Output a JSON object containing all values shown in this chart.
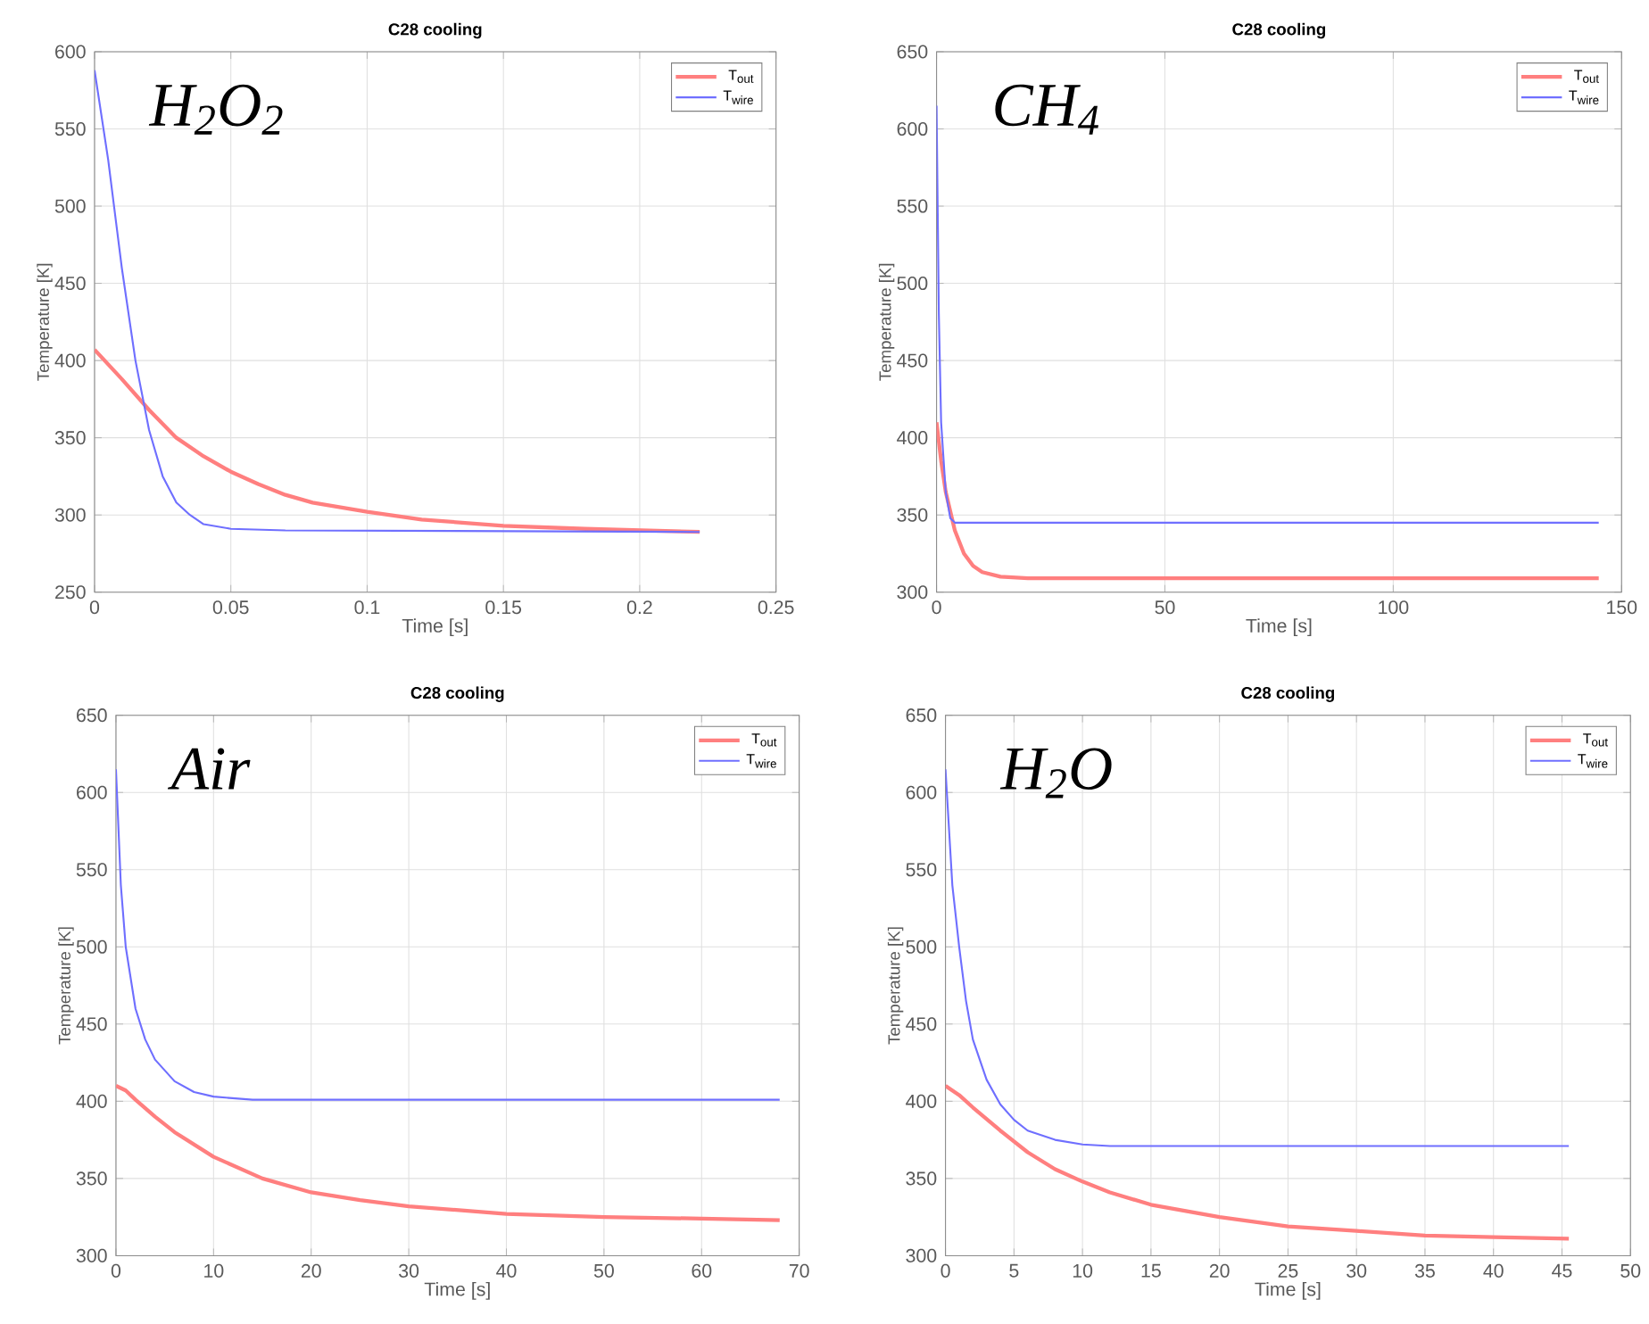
{
  "chart_data": [
    {
      "type": "line",
      "title": "C28 cooling",
      "xlabel": "Time [s]",
      "ylabel": "Temperature [K]",
      "annotations": [
        "H$_{2}$O$_{2}$"
      ],
      "xlim": [
        0,
        0.25
      ],
      "ylim": [
        250,
        600
      ],
      "xticks": [
        0,
        0.05,
        0.1,
        0.15,
        0.2,
        0.25
      ],
      "yticks": [
        250,
        300,
        350,
        400,
        450,
        500,
        550,
        600
      ],
      "grid": true,
      "legend": "top right",
      "series": [
        {
          "name": "T$_{out}$",
          "color": "#ff7f7f",
          "x": [
            0,
            0.01,
            0.02,
            0.03,
            0.04,
            0.05,
            0.06,
            0.07,
            0.08,
            0.1,
            0.12,
            0.15,
            0.18,
            0.222
          ],
          "values": [
            407,
            388,
            368,
            350,
            338,
            328,
            320,
            313,
            308,
            302,
            297,
            293,
            291,
            289
          ]
        },
        {
          "name": "T$_{wire}$",
          "color": "#6f6fff",
          "x": [
            0,
            0.005,
            0.01,
            0.015,
            0.02,
            0.025,
            0.03,
            0.035,
            0.04,
            0.05,
            0.07,
            0.222
          ],
          "values": [
            588,
            530,
            460,
            400,
            355,
            325,
            308,
            300,
            294,
            291,
            290,
            289
          ]
        }
      ]
    },
    {
      "type": "line",
      "title": "C28 cooling",
      "xlabel": "Time [s]",
      "ylabel": "Temperature [K]",
      "annotations": [
        "CH$_{4}$"
      ],
      "xlim": [
        0,
        150
      ],
      "ylim": [
        300,
        650
      ],
      "xticks": [
        0,
        50,
        100,
        150
      ],
      "yticks": [
        300,
        350,
        400,
        450,
        500,
        550,
        600,
        650
      ],
      "grid": true,
      "legend": "top right",
      "series": [
        {
          "name": "T$_{out}$",
          "color": "#ff7f7f",
          "x": [
            0,
            1,
            2,
            4,
            6,
            8,
            10,
            14,
            20,
            145
          ],
          "values": [
            410,
            385,
            365,
            340,
            325,
            317,
            313,
            310,
            309,
            309
          ]
        },
        {
          "name": "T$_{wire}$",
          "color": "#6f6fff",
          "x": [
            0,
            0.5,
            1,
            2,
            3,
            4,
            145
          ],
          "values": [
            615,
            480,
            410,
            365,
            348,
            345,
            345
          ]
        }
      ]
    },
    {
      "type": "line",
      "title": "C28 cooling",
      "xlabel": "Time [s]",
      "ylabel": "Temperature [K]",
      "annotations": [
        "Air"
      ],
      "xlim": [
        0,
        70
      ],
      "ylim": [
        300,
        650
      ],
      "xticks": [
        0,
        10,
        20,
        30,
        40,
        50,
        60,
        70
      ],
      "yticks": [
        300,
        350,
        400,
        450,
        500,
        550,
        600,
        650
      ],
      "grid": true,
      "legend": "top right",
      "series": [
        {
          "name": "T$_{out}$",
          "color": "#ff7f7f",
          "x": [
            0,
            1,
            2,
            4,
            6,
            8,
            10,
            15,
            20,
            25,
            30,
            40,
            50,
            60,
            68
          ],
          "values": [
            410,
            407,
            401,
            390,
            380,
            372,
            364,
            350,
            341,
            336,
            332,
            327,
            325,
            324,
            323
          ]
        },
        {
          "name": "T$_{wire}$",
          "color": "#6f6fff",
          "x": [
            0,
            0.5,
            1,
            2,
            3,
            4,
            6,
            8,
            10,
            14,
            68
          ],
          "values": [
            615,
            540,
            500,
            460,
            440,
            427,
            413,
            406,
            403,
            401,
            401
          ]
        }
      ]
    },
    {
      "type": "line",
      "title": "C28 cooling",
      "xlabel": "Time [s]",
      "ylabel": "Temperature [K]",
      "annotations": [
        "H$_{2}$O"
      ],
      "xlim": [
        0,
        50
      ],
      "ylim": [
        300,
        650
      ],
      "xticks": [
        0,
        5,
        10,
        15,
        20,
        25,
        30,
        35,
        40,
        45,
        50
      ],
      "yticks": [
        300,
        350,
        400,
        450,
        500,
        550,
        600,
        650
      ],
      "grid": true,
      "legend": "top right",
      "series": [
        {
          "name": "T$_{out}$",
          "color": "#ff7f7f",
          "x": [
            0,
            1,
            2,
            4,
            6,
            8,
            10,
            12,
            15,
            20,
            25,
            30,
            35,
            40,
            45.5
          ],
          "values": [
            410,
            404,
            396,
            381,
            367,
            356,
            348,
            341,
            333,
            325,
            319,
            316,
            313,
            312,
            311
          ]
        },
        {
          "name": "T$_{wire}$",
          "color": "#6f6fff",
          "x": [
            0,
            0.5,
            1,
            1.5,
            2,
            3,
            4,
            5,
            6,
            8,
            10,
            12,
            45.5
          ],
          "values": [
            615,
            540,
            500,
            465,
            440,
            414,
            398,
            388,
            381,
            375,
            372,
            371,
            371
          ]
        }
      ]
    }
  ]
}
